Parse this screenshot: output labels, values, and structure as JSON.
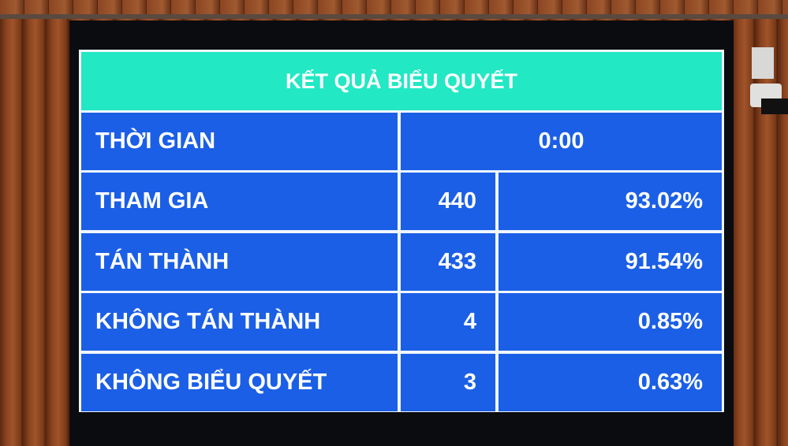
{
  "title": "KẾT QUẢ BIỂU QUYẾT",
  "time": {
    "label": "THỜI GIAN",
    "value": "0:00"
  },
  "rows": [
    {
      "label": "THAM GIA",
      "count": "440",
      "percent": "93.02%"
    },
    {
      "label": "TÁN THÀNH",
      "count": "433",
      "percent": "91.54%"
    },
    {
      "label": "KHÔNG TÁN THÀNH",
      "count": "4",
      "percent": "0.85%"
    },
    {
      "label": "KHÔNG BIỂU QUYẾT",
      "count": "3",
      "percent": "0.63%"
    }
  ],
  "colors": {
    "header": "#22e8c4",
    "cell": "#1b5fe6",
    "text": "#ffffff"
  }
}
